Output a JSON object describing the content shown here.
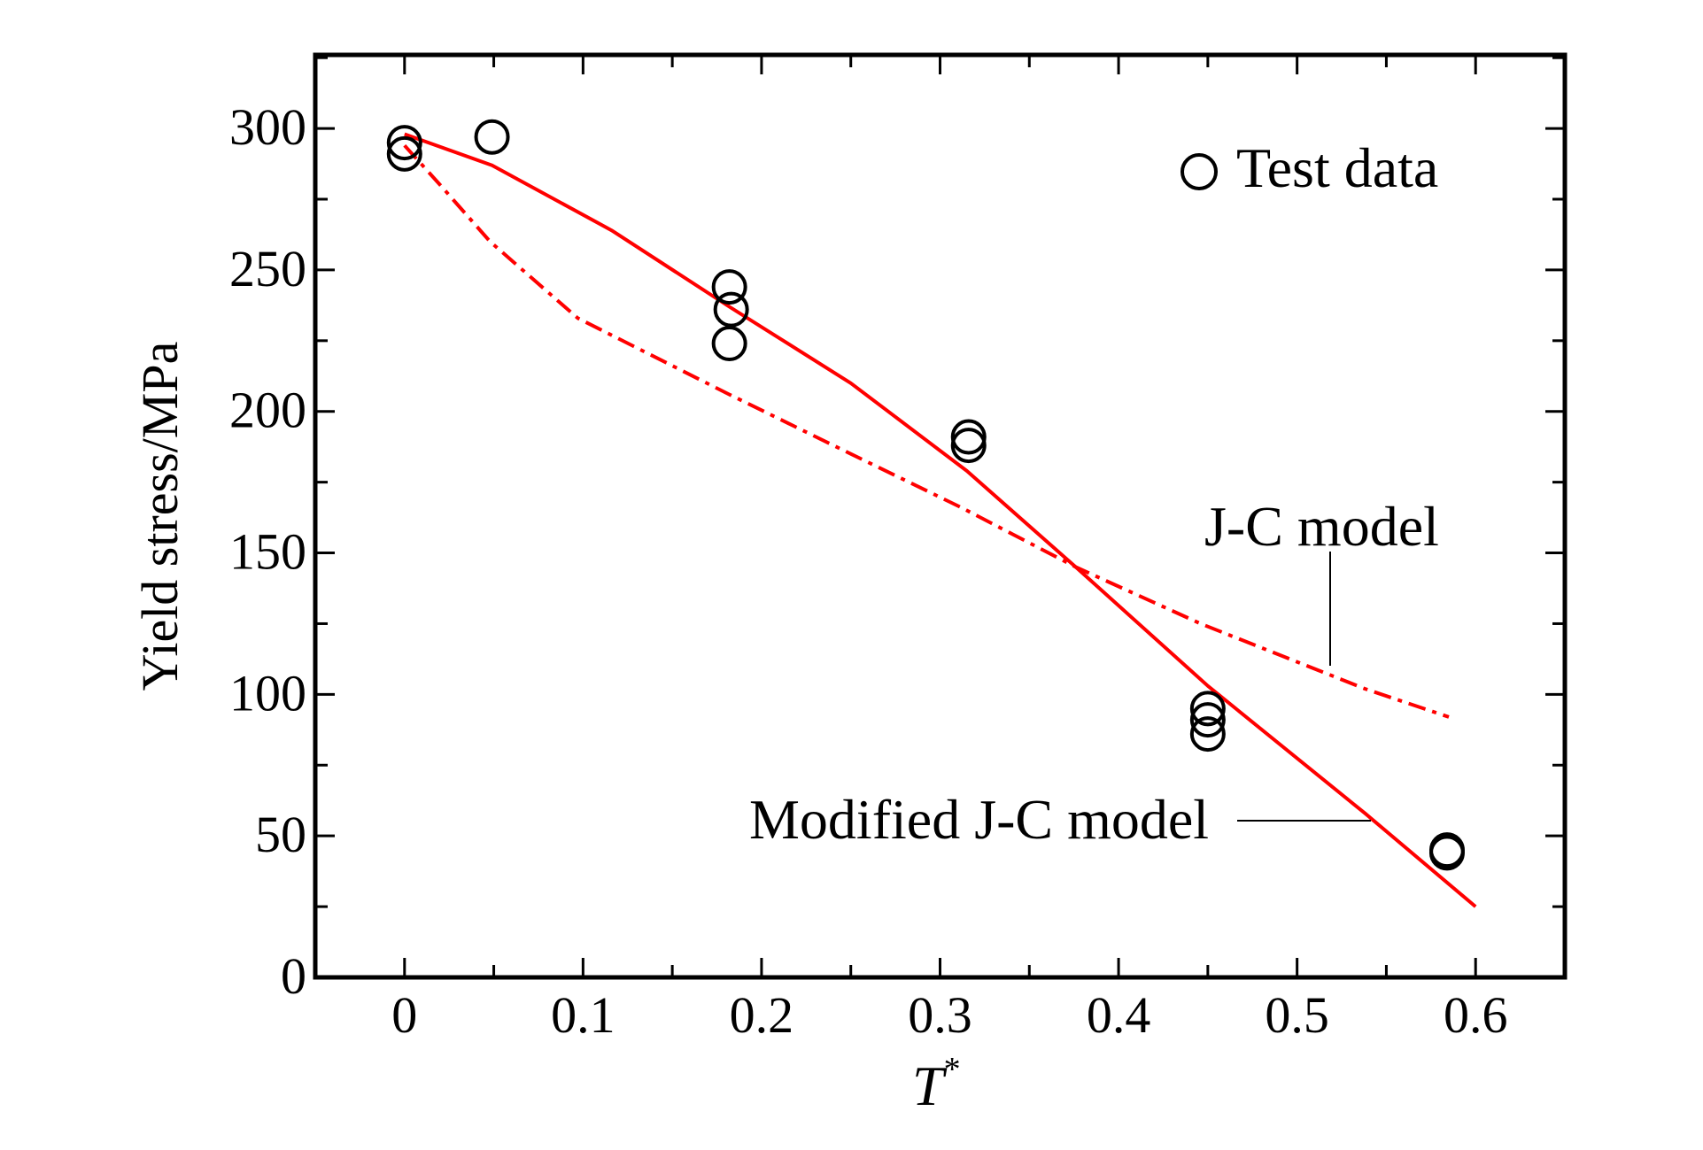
{
  "chart_data": {
    "type": "scatter",
    "title": "",
    "xlabel": "T",
    "xlabel_superscript": "*",
    "ylabel": "Yield stress/MPa",
    "xlim": [
      -0.05,
      0.65
    ],
    "ylim": [
      0,
      326
    ],
    "x_ticks": [
      "0",
      "0.1",
      "0.2",
      "0.3",
      "0.4",
      "0.5",
      "0.6"
    ],
    "y_ticks": [
      "0",
      "50",
      "100",
      "150",
      "200",
      "250",
      "300"
    ],
    "grid": false,
    "legend_placement": "top-right",
    "series": [
      {
        "name": "Test data",
        "kind": "scatter",
        "marker": "open-circle",
        "color": "#000000",
        "points": [
          [
            0,
            295
          ],
          [
            0,
            291
          ],
          [
            0.049,
            297
          ],
          [
            0.182,
            244
          ],
          [
            0.183,
            236
          ],
          [
            0.182,
            224
          ],
          [
            0.316,
            191
          ],
          [
            0.316,
            188
          ],
          [
            0.45,
            95
          ],
          [
            0.45,
            91
          ],
          [
            0.45,
            86
          ],
          [
            0.584,
            45
          ],
          [
            0.584,
            44
          ]
        ]
      },
      {
        "name": "Modified J-C model",
        "kind": "line",
        "style": "solid",
        "color": "#ff0000",
        "points": [
          [
            0,
            298
          ],
          [
            0.049,
            287
          ],
          [
            0.116,
            264
          ],
          [
            0.182,
            237
          ],
          [
            0.25,
            210
          ],
          [
            0.315,
            179
          ],
          [
            0.376,
            145
          ],
          [
            0.45,
            103
          ],
          [
            0.538,
            58
          ],
          [
            0.6,
            25
          ]
        ]
      },
      {
        "name": "J-C model",
        "kind": "line",
        "style": "dash-dot",
        "color": "#ff0000",
        "points": [
          [
            0,
            294
          ],
          [
            0.02,
            280
          ],
          [
            0.048,
            260
          ],
          [
            0.097,
            233
          ],
          [
            0.182,
            206
          ],
          [
            0.25,
            185
          ],
          [
            0.312,
            166
          ],
          [
            0.376,
            145
          ],
          [
            0.446,
            125
          ],
          [
            0.538,
            102
          ],
          [
            0.585,
            92
          ]
        ]
      }
    ],
    "annotations": [
      {
        "text": "J-C model",
        "points_to": "J-C model"
      },
      {
        "text": "Modified J-C model",
        "points_to": "Modified J-C model"
      }
    ],
    "legend": [
      {
        "label": "Test data",
        "marker": "open-circle"
      }
    ]
  }
}
